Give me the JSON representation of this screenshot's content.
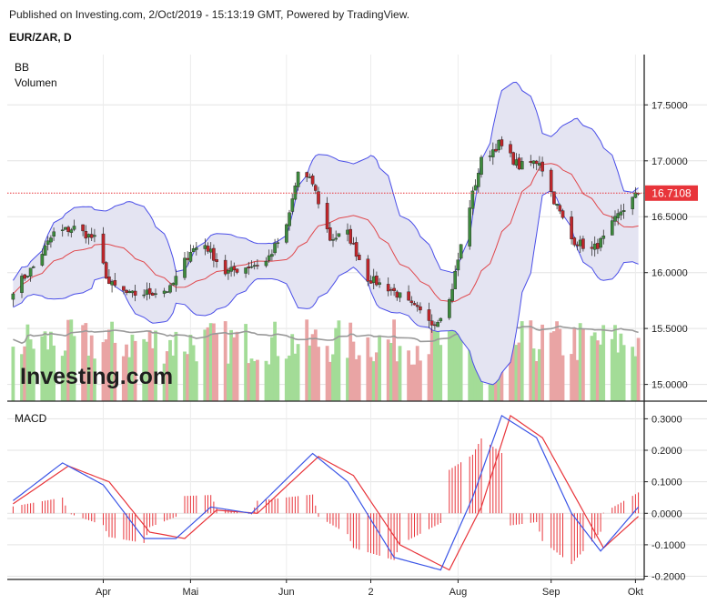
{
  "header": {
    "published": "Published on Investing.com, 2/Oct/2019 - 15:13:19 GMT, Powered by TradingView.",
    "symbol": "EUR/ZAR, D"
  },
  "legend": {
    "bb": "BB",
    "volume": "Volumen",
    "macd": "MACD"
  },
  "watermark": "Investing.com",
  "current_price_label": "16.7108",
  "colors": {
    "up": "#3d8a3d",
    "down": "#c0262b",
    "bb_band": "#4a4ee8",
    "bb_mid": "#e0474c",
    "bb_fill": "#e4e4f2",
    "vol_up": "#a3dc97",
    "vol_down": "#e9a4a4",
    "vol_ma": "#9a9a9a",
    "macd_line": "#3b55e6",
    "signal_line": "#e8343a",
    "hist": "#e8343a",
    "price_line": "#e8343a"
  },
  "chart_data": [
    {
      "type": "candlestick",
      "title": "EUR/ZAR, D",
      "indicators": [
        "BB",
        "Volumen"
      ],
      "x_ticks": [
        "Apr",
        "Mai",
        "Jun",
        "2",
        "Aug",
        "Sep",
        "Okt"
      ],
      "y_ticks": [
        "15.0000",
        "15.5000",
        "16.0000",
        "16.5000",
        "17.0000",
        "17.5000"
      ],
      "ylim": [
        14.85,
        17.95
      ],
      "last_close": 16.7108,
      "close_keypoints": [
        {
          "date": "2019-03-01",
          "close": 15.85
        },
        {
          "date": "2019-03-08",
          "close": 16.05
        },
        {
          "date": "2019-03-15",
          "close": 16.35
        },
        {
          "date": "2019-03-22",
          "close": 16.4
        },
        {
          "date": "2019-03-29",
          "close": 16.3
        },
        {
          "date": "2019-04-03",
          "close": 15.9
        },
        {
          "date": "2019-04-10",
          "close": 15.8
        },
        {
          "date": "2019-04-17",
          "close": 15.82
        },
        {
          "date": "2019-04-24",
          "close": 15.85
        },
        {
          "date": "2019-05-01",
          "close": 16.2
        },
        {
          "date": "2019-05-06",
          "close": 16.25
        },
        {
          "date": "2019-05-13",
          "close": 16.0
        },
        {
          "date": "2019-05-20",
          "close": 16.05
        },
        {
          "date": "2019-05-27",
          "close": 16.1
        },
        {
          "date": "2019-06-03",
          "close": 16.4
        },
        {
          "date": "2019-06-07",
          "close": 16.9
        },
        {
          "date": "2019-06-12",
          "close": 16.8
        },
        {
          "date": "2019-06-18",
          "close": 16.3
        },
        {
          "date": "2019-06-24",
          "close": 16.35
        },
        {
          "date": "2019-07-01",
          "close": 15.95
        },
        {
          "date": "2019-07-09",
          "close": 15.85
        },
        {
          "date": "2019-07-16",
          "close": 15.7
        },
        {
          "date": "2019-07-24",
          "close": 15.55
        },
        {
          "date": "2019-07-29",
          "close": 15.75
        },
        {
          "date": "2019-08-05",
          "close": 16.6
        },
        {
          "date": "2019-08-09",
          "close": 17.0
        },
        {
          "date": "2019-08-15",
          "close": 17.15
        },
        {
          "date": "2019-08-22",
          "close": 16.95
        },
        {
          "date": "2019-08-29",
          "close": 17.0
        },
        {
          "date": "2019-09-03",
          "close": 16.65
        },
        {
          "date": "2019-09-09",
          "close": 16.3
        },
        {
          "date": "2019-09-16",
          "close": 16.2
        },
        {
          "date": "2019-09-20",
          "close": 16.3
        },
        {
          "date": "2019-09-26",
          "close": 16.55
        },
        {
          "date": "2019-10-02",
          "close": 16.71
        }
      ]
    },
    {
      "type": "line",
      "title": "MACD",
      "x_ticks": [
        "Apr",
        "Mai",
        "Jun",
        "2",
        "Aug",
        "Sep",
        "Okt"
      ],
      "y_ticks": [
        "-0.2000",
        "-0.1000",
        "0.0000",
        "0.1000",
        "0.2000",
        "0.3000"
      ],
      "ylim": [
        -0.21,
        0.33
      ],
      "series": [
        {
          "name": "",
          "role": "macd",
          "points": [
            {
              "date": "2019-03-01",
              "value": 0.04
            },
            {
              "date": "2019-03-18",
              "value": 0.16
            },
            {
              "date": "2019-04-01",
              "value": 0.09
            },
            {
              "date": "2019-04-15",
              "value": -0.08
            },
            {
              "date": "2019-04-26",
              "value": -0.08
            },
            {
              "date": "2019-05-08",
              "value": 0.02
            },
            {
              "date": "2019-05-22",
              "value": 0.0
            },
            {
              "date": "2019-06-12",
              "value": 0.19
            },
            {
              "date": "2019-06-24",
              "value": 0.1
            },
            {
              "date": "2019-07-10",
              "value": -0.14
            },
            {
              "date": "2019-07-26",
              "value": -0.18
            },
            {
              "date": "2019-08-06",
              "value": 0.05
            },
            {
              "date": "2019-08-16",
              "value": 0.31
            },
            {
              "date": "2019-08-28",
              "value": 0.24
            },
            {
              "date": "2019-09-09",
              "value": 0.0
            },
            {
              "date": "2019-09-19",
              "value": -0.12
            },
            {
              "date": "2019-10-02",
              "value": 0.02
            }
          ]
        },
        {
          "name": "",
          "role": "signal",
          "points": [
            {
              "date": "2019-03-01",
              "value": 0.03
            },
            {
              "date": "2019-03-20",
              "value": 0.15
            },
            {
              "date": "2019-04-03",
              "value": 0.1
            },
            {
              "date": "2019-04-17",
              "value": -0.06
            },
            {
              "date": "2019-04-29",
              "value": -0.08
            },
            {
              "date": "2019-05-10",
              "value": 0.01
            },
            {
              "date": "2019-05-24",
              "value": 0.0
            },
            {
              "date": "2019-06-14",
              "value": 0.18
            },
            {
              "date": "2019-06-26",
              "value": 0.12
            },
            {
              "date": "2019-07-12",
              "value": -0.1
            },
            {
              "date": "2019-07-29",
              "value": -0.18
            },
            {
              "date": "2019-08-09",
              "value": 0.02
            },
            {
              "date": "2019-08-19",
              "value": 0.31
            },
            {
              "date": "2019-08-30",
              "value": 0.24
            },
            {
              "date": "2019-09-11",
              "value": 0.04
            },
            {
              "date": "2019-09-20",
              "value": -0.11
            },
            {
              "date": "2019-10-02",
              "value": -0.01
            }
          ]
        }
      ]
    }
  ]
}
